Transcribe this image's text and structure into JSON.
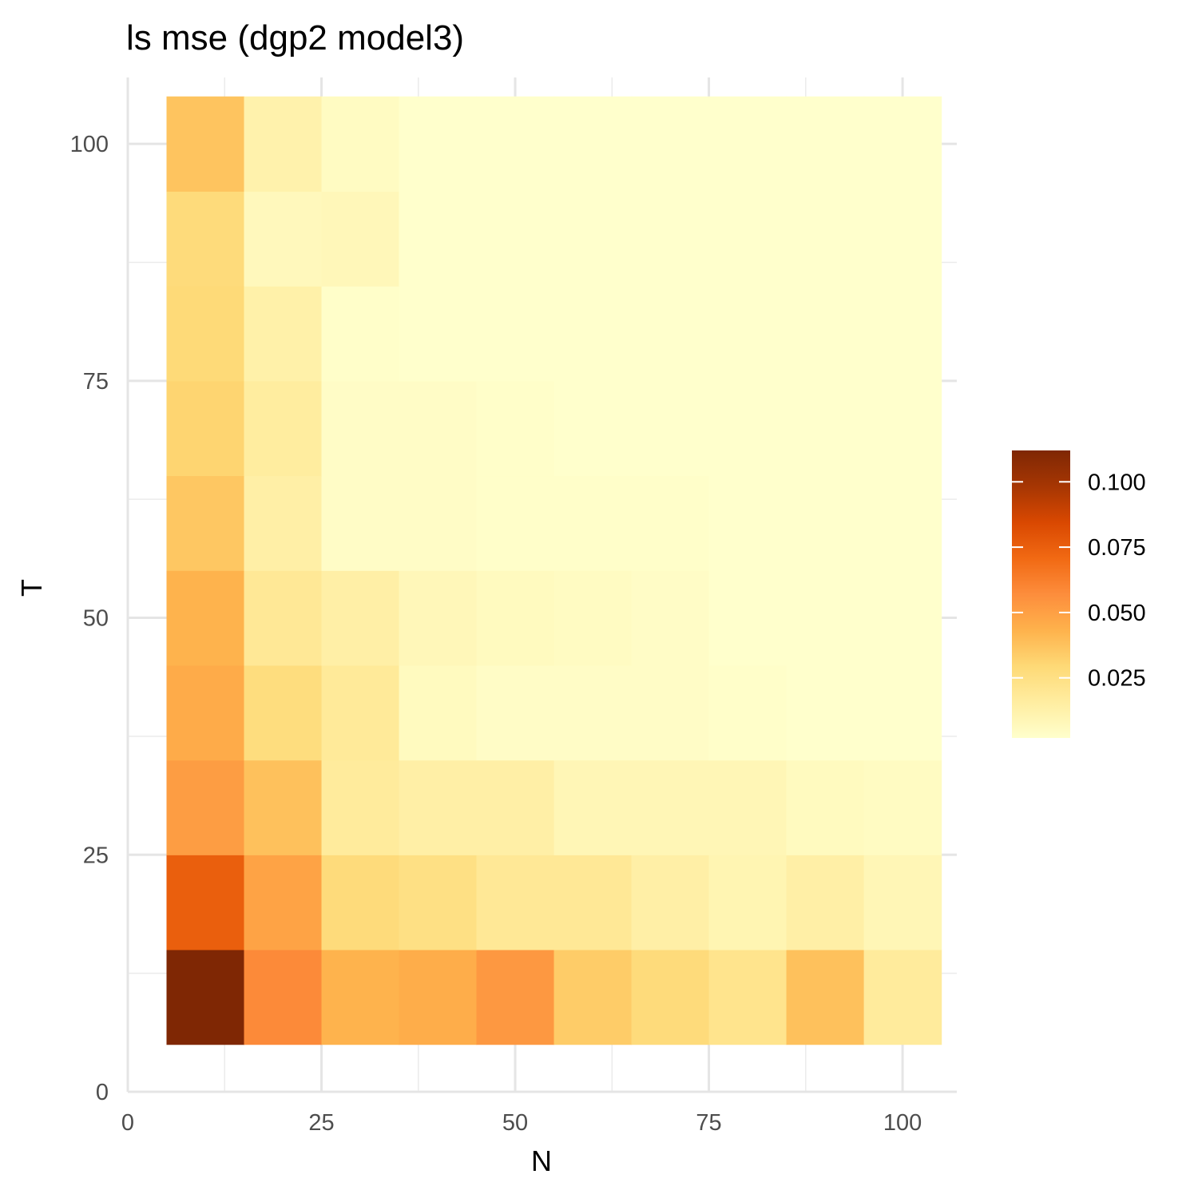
{
  "chart_data": {
    "type": "heatmap",
    "title": "ls mse (dgp2 model3)",
    "xlabel": "N",
    "ylabel": "T",
    "x": [
      10,
      20,
      30,
      40,
      50,
      60,
      70,
      80,
      90,
      100
    ],
    "y": [
      10,
      20,
      30,
      40,
      50,
      60,
      70,
      80,
      90,
      100
    ],
    "xlim": [
      0,
      107
    ],
    "ylim": [
      0,
      107
    ],
    "x_ticks": [
      0,
      25,
      50,
      75,
      100
    ],
    "y_ticks": [
      0,
      25,
      50,
      75,
      100
    ],
    "x_tick_labels": [
      "0",
      "25",
      "50",
      "75",
      "100"
    ],
    "y_tick_labels": [
      "0",
      "25",
      "50",
      "75",
      "100"
    ],
    "grid": true,
    "legend_position": "right",
    "colorbar": {
      "min": 0.002,
      "max": 0.112,
      "ticks": [
        0.025,
        0.05,
        0.075,
        0.1
      ],
      "tick_labels": [
        "0.025",
        "0.050",
        "0.075",
        "0.100"
      ],
      "colors": [
        "#ffffcc",
        "#ffeda0",
        "#fed976",
        "#feb24c",
        "#fd8d3c",
        "#f16913",
        "#d94801",
        "#a63603",
        "#7f2704"
      ]
    },
    "values": [
      [
        0.112,
        0.058,
        0.043,
        0.045,
        0.053,
        0.034,
        0.028,
        0.022,
        0.038,
        0.017
      ],
      [
        0.075,
        0.049,
        0.028,
        0.025,
        0.019,
        0.019,
        0.014,
        0.01,
        0.014,
        0.009
      ],
      [
        0.051,
        0.038,
        0.017,
        0.014,
        0.014,
        0.009,
        0.009,
        0.009,
        0.006,
        0.005
      ],
      [
        0.046,
        0.027,
        0.018,
        0.006,
        0.004,
        0.004,
        0.004,
        0.003,
        0.002,
        0.002
      ],
      [
        0.043,
        0.019,
        0.014,
        0.008,
        0.006,
        0.005,
        0.004,
        0.002,
        0.002,
        0.002
      ],
      [
        0.036,
        0.014,
        0.004,
        0.004,
        0.003,
        0.003,
        0.003,
        0.002,
        0.002,
        0.002
      ],
      [
        0.031,
        0.016,
        0.004,
        0.004,
        0.003,
        0.002,
        0.002,
        0.002,
        0.002,
        0.002
      ],
      [
        0.029,
        0.013,
        0.003,
        0.002,
        0.002,
        0.002,
        0.002,
        0.002,
        0.002,
        0.002
      ],
      [
        0.028,
        0.007,
        0.008,
        0.002,
        0.002,
        0.002,
        0.002,
        0.002,
        0.002,
        0.002
      ],
      [
        0.037,
        0.012,
        0.005,
        0.002,
        0.002,
        0.002,
        0.002,
        0.002,
        0.002,
        0.002
      ]
    ]
  }
}
